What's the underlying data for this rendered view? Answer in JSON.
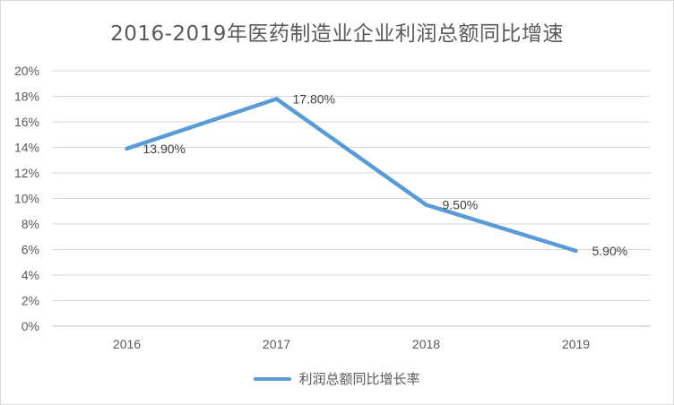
{
  "chart_data": {
    "type": "line",
    "title": "2016-2019年医药制造业企业利润总额同比增速",
    "categories": [
      "2016",
      "2017",
      "2018",
      "2019"
    ],
    "series": [
      {
        "name": "利润总额同比增长率",
        "values": [
          13.9,
          17.8,
          9.5,
          5.9
        ],
        "labels": [
          "13.90%",
          "17.80%",
          "9.50%",
          "5.90%"
        ],
        "color": "#5b9bd5"
      }
    ],
    "ylim": [
      0,
      20
    ],
    "yticks": [
      "0%",
      "2%",
      "4%",
      "6%",
      "8%",
      "10%",
      "12%",
      "14%",
      "16%",
      "18%",
      "20%"
    ],
    "grid": true,
    "legend_position": "bottom"
  }
}
